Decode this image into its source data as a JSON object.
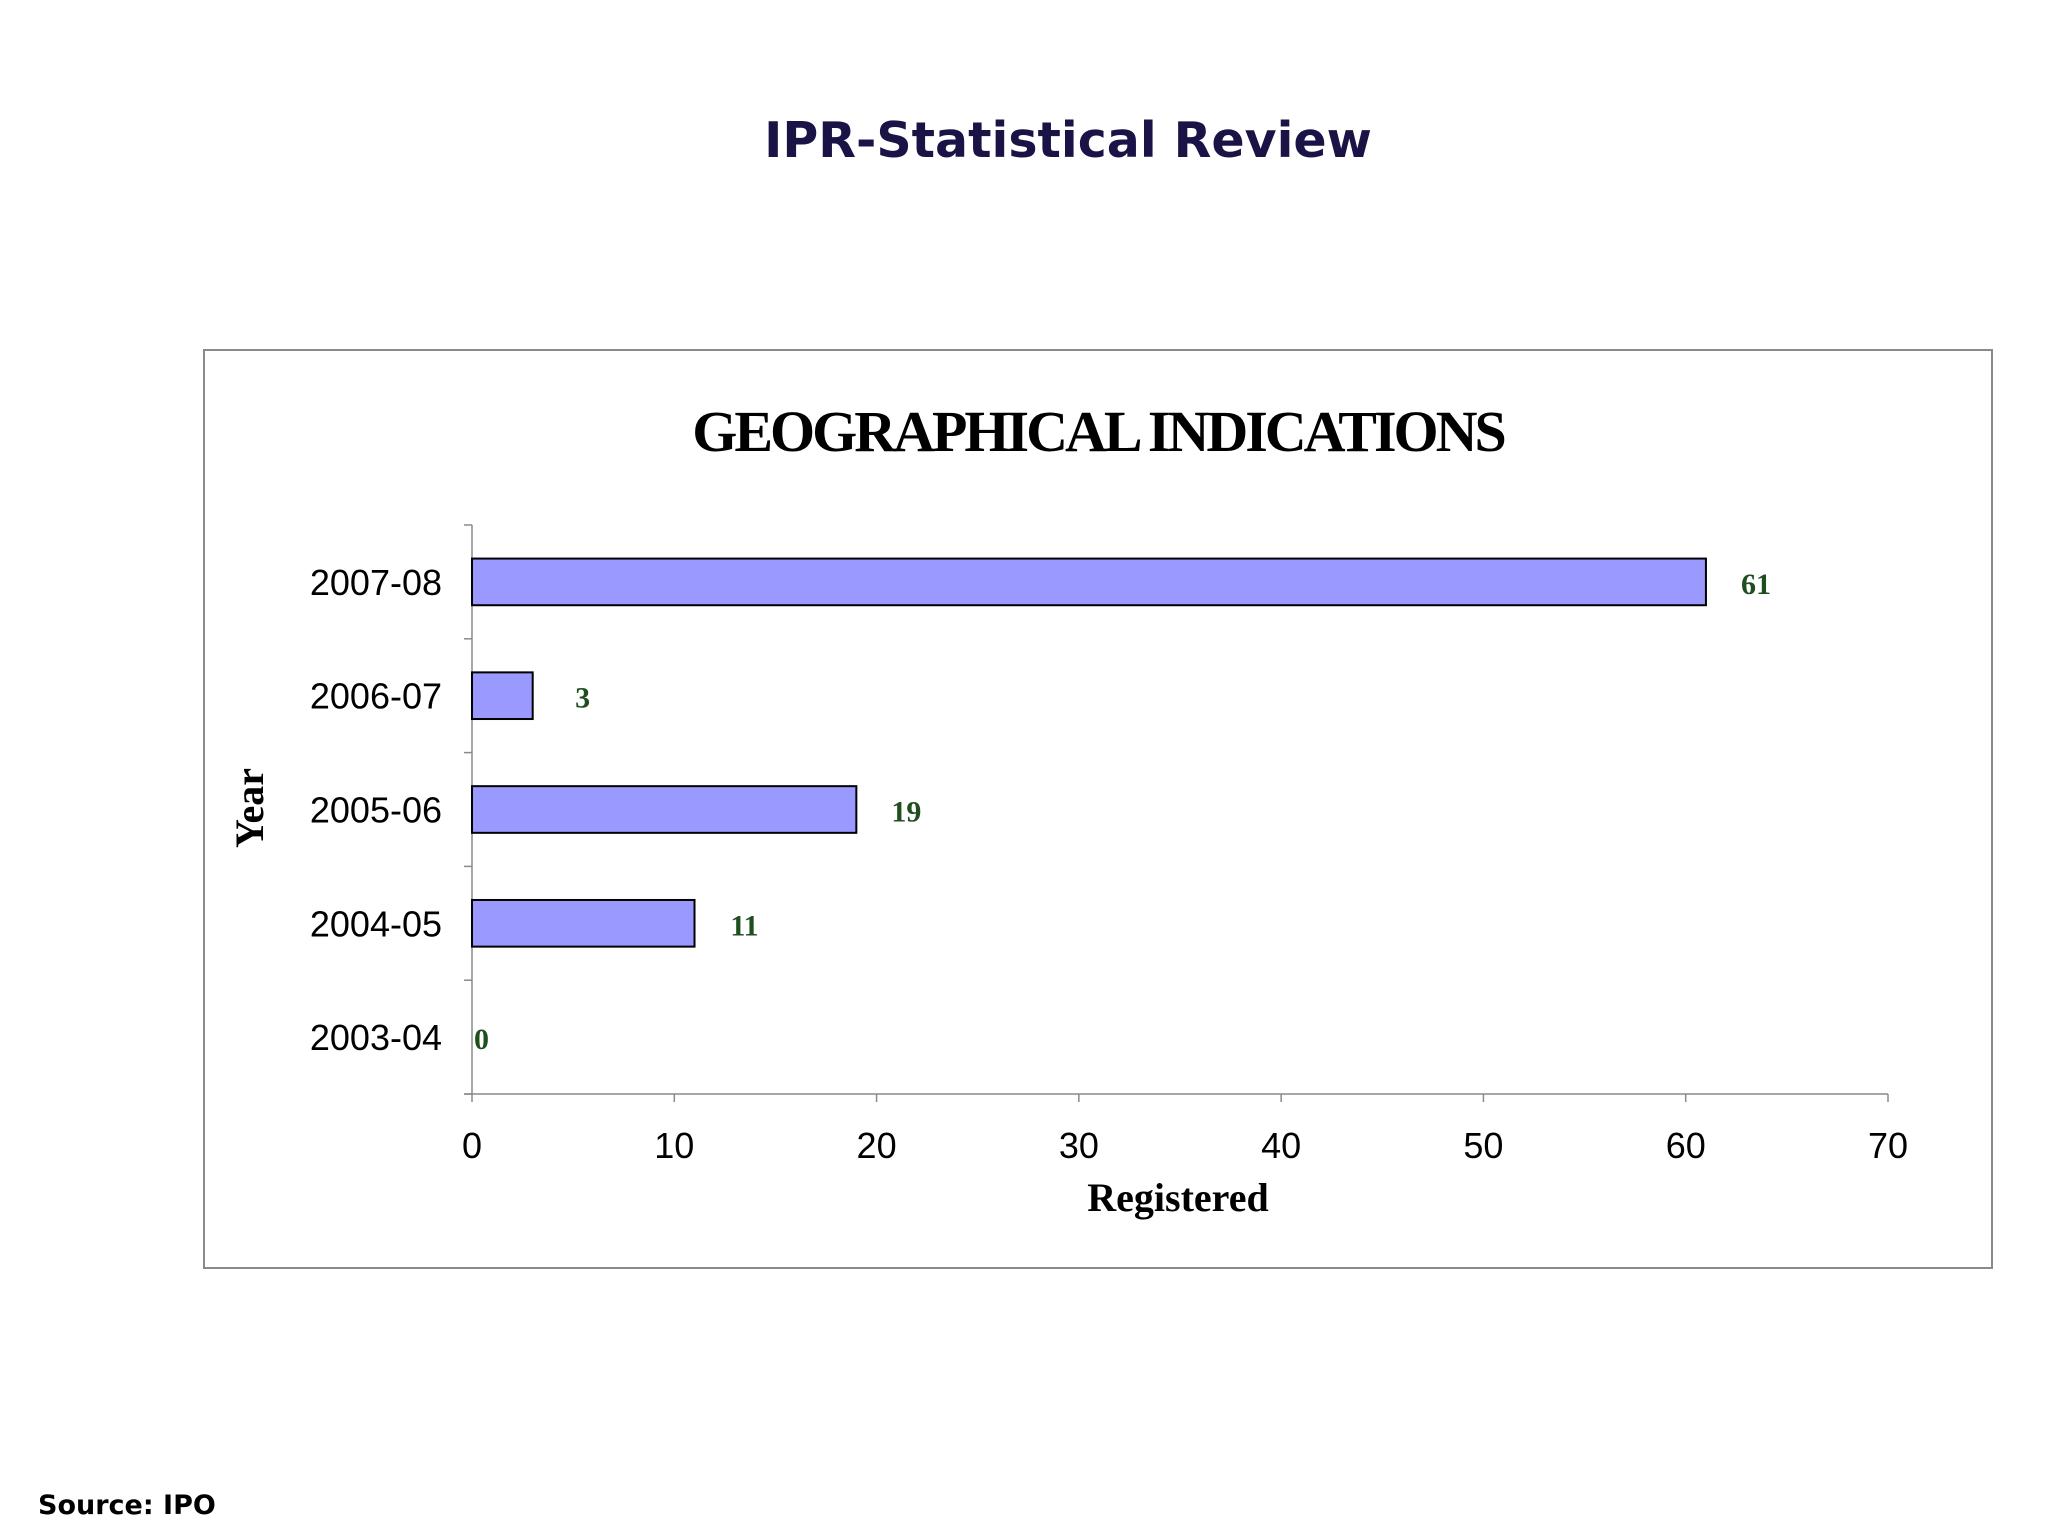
{
  "page": {
    "title": "IPR-Statistical Review",
    "source": "Source: IPO"
  },
  "colors": {
    "title": "#1a1446",
    "bar_fill": "#9999ff",
    "bar_stroke": "#000000",
    "data_label": "#1f4e1f",
    "frame": "#8a8a8a"
  },
  "chart_data": {
    "type": "bar",
    "orientation": "horizontal",
    "title": "GEOGRAPHICAL INDICATIONS",
    "xlabel": "Registered",
    "ylabel": "Year",
    "categories": [
      "2007-08",
      "2006-07",
      "2005-06",
      "2004-05",
      "2003-04"
    ],
    "values": [
      61,
      3,
      19,
      11,
      0
    ],
    "data_labels": [
      "61",
      "3",
      "19",
      "11",
      "0"
    ],
    "xlim": [
      0,
      70
    ],
    "xticks": [
      0,
      10,
      20,
      30,
      40,
      50,
      60,
      70
    ],
    "xtick_labels": [
      "0",
      "10",
      "20",
      "30",
      "40",
      "50",
      "60",
      "70"
    ],
    "grid": false,
    "legend": "none"
  }
}
